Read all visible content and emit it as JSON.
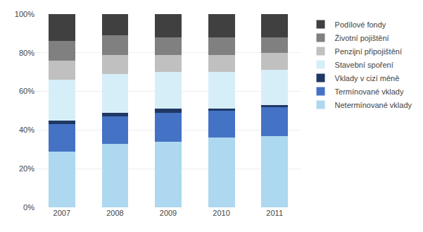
{
  "chart_data": {
    "type": "bar",
    "stacked": true,
    "categories": [
      "2007",
      "2008",
      "2009",
      "2010",
      "2011"
    ],
    "series": [
      {
        "name": "Netermínované vklady",
        "color": "#ADD8F0",
        "values": [
          29,
          33,
          34,
          36,
          37
        ]
      },
      {
        "name": "Termínované vklady",
        "color": "#4472C4",
        "values": [
          14,
          14,
          15,
          14,
          15
        ]
      },
      {
        "name": "Vklady v cizí měně",
        "color": "#1F3864",
        "values": [
          2,
          2,
          2,
          1,
          1
        ]
      },
      {
        "name": "Stavební spoření",
        "color": "#D6EEF8",
        "values": [
          21,
          20,
          19,
          19,
          18
        ]
      },
      {
        "name": "Penzijní připojištění",
        "color": "#C0C0C0",
        "values": [
          10,
          10,
          9,
          9,
          9
        ]
      },
      {
        "name": "Životní pojištění",
        "color": "#808080",
        "values": [
          10,
          10,
          9,
          9,
          8
        ]
      },
      {
        "name": "Podílové fondy",
        "color": "#404040",
        "values": [
          14,
          11,
          12,
          12,
          12
        ]
      }
    ],
    "ylim": [
      0,
      100
    ],
    "yticks": [
      {
        "value": 0,
        "label": "0%"
      },
      {
        "value": 20,
        "label": "20%"
      },
      {
        "value": 40,
        "label": "40%"
      },
      {
        "value": 60,
        "label": "60%"
      },
      {
        "value": 80,
        "label": "80%"
      },
      {
        "value": 100,
        "label": "100%"
      }
    ],
    "grid": true,
    "legend": "right"
  }
}
